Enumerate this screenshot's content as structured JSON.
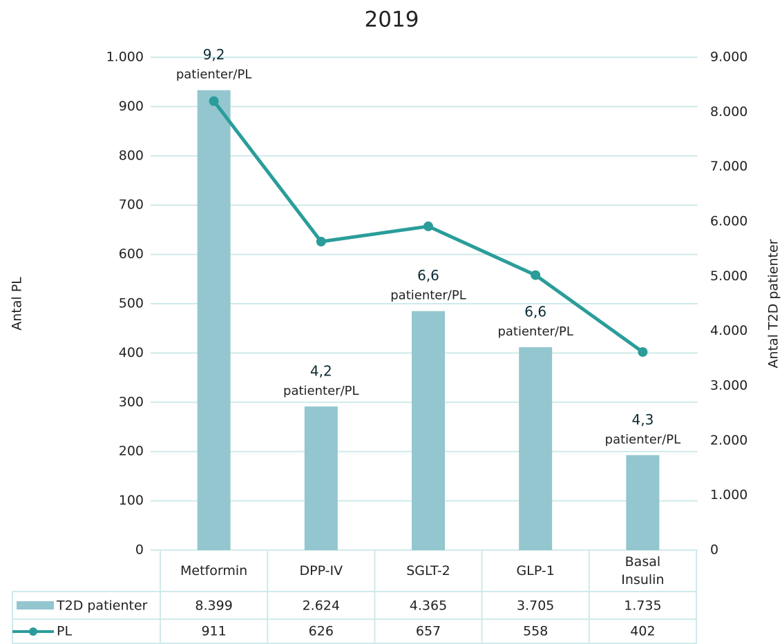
{
  "chart_data": {
    "type": "bar_line",
    "title": "2019",
    "y_label": "Antal PL",
    "y2_label": "Antal T2D patienter",
    "categories": [
      "Metformin",
      "DPP-IV",
      "SGLT-2",
      "GLP-1",
      "Basal Insulin"
    ],
    "series": [
      {
        "name": "T2D patienter",
        "type": "bar",
        "axis": "y2",
        "color": "#93c6cf",
        "values": [
          8399,
          2624,
          4365,
          3705,
          1735
        ],
        "value_labels": [
          "8.399",
          "2.624",
          "4.365",
          "3.705",
          "1.735"
        ]
      },
      {
        "name": "PL",
        "type": "line",
        "axis": "y",
        "color": "#2a9d9a",
        "values": [
          911,
          626,
          657,
          558,
          402
        ]
      }
    ],
    "annotations": [
      {
        "text": "9,2",
        "subtext": "patienter/PL"
      },
      {
        "text": "4,2",
        "subtext": "patienter/PL"
      },
      {
        "text": "6,6",
        "subtext": "patienter/PL"
      },
      {
        "text": "6,6",
        "subtext": "patienter/PL"
      },
      {
        "text": "4,3",
        "subtext": "patienter/PL"
      }
    ],
    "ylim": [
      0,
      1000
    ],
    "yticks": [
      0,
      100,
      200,
      300,
      400,
      500,
      600,
      700,
      800,
      900,
      {
        "value": 1000,
        "label": "1.000"
      }
    ],
    "y2lim": [
      0,
      9000
    ],
    "y2ticks": [
      0,
      {
        "value": 1000,
        "label": "1.000"
      },
      {
        "value": 2000,
        "label": "2.000"
      },
      {
        "value": 3000,
        "label": "3.000"
      },
      {
        "value": 4000,
        "label": "4.000"
      },
      {
        "value": 5000,
        "label": "5.000"
      },
      {
        "value": 6000,
        "label": "6.000"
      },
      {
        "value": 7000,
        "label": "7.000"
      },
      {
        "value": 8000,
        "label": "8.000"
      },
      {
        "value": 9000,
        "label": "9.000"
      }
    ],
    "grid": true
  }
}
